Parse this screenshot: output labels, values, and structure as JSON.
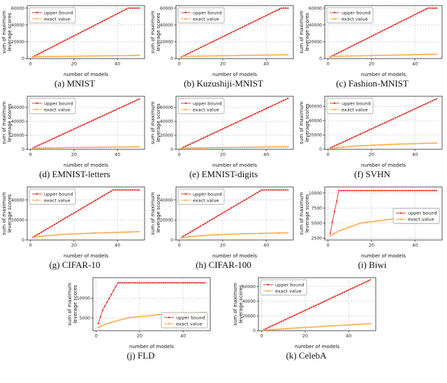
{
  "figure": {
    "background": "#ffffff"
  },
  "axes": {
    "xlabel": "number of models",
    "ylabel_line1": "sum of maximum",
    "ylabel_line2": "leverage scores"
  },
  "legend": {
    "upper": "upper bound",
    "exact": "exact value"
  },
  "colors": {
    "upper": "#e8291f",
    "exact": "#ffa33b",
    "grid": "#c6c6c6",
    "axis": "#2b2b2b"
  },
  "chart_data": [
    {
      "id": "mnist",
      "caption": "(a) MNIST",
      "type": "line",
      "xlim": [
        -1.5,
        52.5
      ],
      "ylim": [
        0,
        63000
      ],
      "xticks": [
        0,
        20,
        40
      ],
      "yticks": [
        0,
        20000,
        40000,
        60000
      ],
      "legend_pos": "upper-left",
      "series": [
        {
          "name": "upper bound",
          "color_key": "upper",
          "points": [
            [
              1,
              2000
            ],
            [
              45,
              60000
            ],
            [
              50,
              60000
            ]
          ]
        },
        {
          "name": "exact value",
          "color_key": "exact",
          "points": [
            [
              1,
              2200
            ],
            [
              50,
              3800
            ]
          ]
        }
      ]
    },
    {
      "id": "kuzushiji-mnist",
      "caption": "(b) Kuzushiji-MNIST",
      "type": "line",
      "xlim": [
        -1.5,
        52.5
      ],
      "ylim": [
        0,
        63000
      ],
      "xticks": [
        0,
        20,
        40
      ],
      "yticks": [
        0,
        20000,
        40000,
        60000
      ],
      "legend_pos": "upper-left",
      "series": [
        {
          "name": "upper bound",
          "color_key": "upper",
          "points": [
            [
              1,
              2000
            ],
            [
              47,
              60000
            ],
            [
              50,
              60000
            ]
          ]
        },
        {
          "name": "exact value",
          "color_key": "exact",
          "points": [
            [
              1,
              2600
            ],
            [
              50,
              4600
            ]
          ]
        }
      ]
    },
    {
      "id": "fashion-mnist",
      "caption": "(c) Fashion-MNIST",
      "type": "line",
      "xlim": [
        -1.5,
        52.5
      ],
      "ylim": [
        0,
        63000
      ],
      "xticks": [
        0,
        20,
        40
      ],
      "yticks": [
        0,
        20000,
        40000,
        60000
      ],
      "legend_pos": "upper-left",
      "series": [
        {
          "name": "upper bound",
          "color_key": "upper",
          "points": [
            [
              1,
              2000
            ],
            [
              46,
              60000
            ],
            [
              50,
              60000
            ]
          ]
        },
        {
          "name": "exact value",
          "color_key": "exact",
          "points": [
            [
              1,
              2600
            ],
            [
              50,
              5200
            ]
          ]
        }
      ]
    },
    {
      "id": "emnist-letters",
      "caption": "(d) EMNIST-letters",
      "type": "line",
      "xlim": [
        -1.5,
        52.5
      ],
      "ylim": [
        0,
        76000
      ],
      "xticks": [
        0,
        20,
        40
      ],
      "yticks": [
        0,
        20000,
        40000,
        60000
      ],
      "legend_pos": "upper-left",
      "series": [
        {
          "name": "upper bound",
          "color_key": "upper",
          "points": [
            [
              1,
              1800
            ],
            [
              50,
              72000
            ]
          ]
        },
        {
          "name": "exact value",
          "color_key": "exact",
          "points": [
            [
              1,
              1800
            ],
            [
              50,
              3600
            ]
          ]
        }
      ]
    },
    {
      "id": "emnist-digits",
      "caption": "(e) EMNIST-digits",
      "type": "line",
      "xlim": [
        -1.5,
        52.5
      ],
      "ylim": [
        0,
        76000
      ],
      "xticks": [
        0,
        20,
        40
      ],
      "yticks": [
        0,
        20000,
        40000,
        60000
      ],
      "legend_pos": "upper-left",
      "series": [
        {
          "name": "upper bound",
          "color_key": "upper",
          "points": [
            [
              1,
              1500
            ],
            [
              50,
              73000
            ]
          ]
        },
        {
          "name": "exact value",
          "color_key": "exact",
          "points": [
            [
              1,
              1800
            ],
            [
              50,
              3600
            ]
          ]
        }
      ]
    },
    {
      "id": "svhn",
      "caption": "(f) SVHN",
      "type": "line",
      "xlim": [
        -1.5,
        52.5
      ],
      "ylim": [
        0,
        74000
      ],
      "xticks": [
        0,
        20,
        40
      ],
      "yticks": [
        0,
        20000,
        40000,
        60000
      ],
      "legend_pos": "upper-left",
      "series": [
        {
          "name": "upper bound",
          "color_key": "upper",
          "points": [
            [
              1,
              1800
            ],
            [
              50,
              70500
            ]
          ]
        },
        {
          "name": "exact value",
          "color_key": "exact",
          "points": [
            [
              1,
              1200
            ],
            [
              5,
              2500
            ],
            [
              15,
              5000
            ],
            [
              30,
              7000
            ],
            [
              50,
              8800
            ]
          ]
        }
      ]
    },
    {
      "id": "cifar-10",
      "caption": "(g) CIFAR-10",
      "type": "line",
      "xlim": [
        -1.5,
        52.5
      ],
      "ylim": [
        0,
        53000
      ],
      "xticks": [
        0,
        20,
        40
      ],
      "yticks": [
        0,
        20000,
        40000
      ],
      "legend_pos": "upper-left",
      "series": [
        {
          "name": "upper bound",
          "color_key": "upper",
          "points": [
            [
              1,
              2600
            ],
            [
              38,
              50000
            ],
            [
              50,
              50000
            ]
          ]
        },
        {
          "name": "exact value",
          "color_key": "exact",
          "points": [
            [
              1,
              2400
            ],
            [
              5,
              3800
            ],
            [
              15,
              5600
            ],
            [
              30,
              7000
            ],
            [
              50,
              8300
            ]
          ]
        }
      ]
    },
    {
      "id": "cifar-100",
      "caption": "(h) CIFAR-100",
      "type": "line",
      "xlim": [
        -1.5,
        52.5
      ],
      "ylim": [
        0,
        53000
      ],
      "xticks": [
        0,
        20,
        40
      ],
      "yticks": [
        0,
        20000,
        40000
      ],
      "legend_pos": "upper-left",
      "series": [
        {
          "name": "upper bound",
          "color_key": "upper",
          "points": [
            [
              1,
              2600
            ],
            [
              38,
              50000
            ],
            [
              50,
              50000
            ]
          ]
        },
        {
          "name": "exact value",
          "color_key": "exact",
          "points": [
            [
              1,
              2200
            ],
            [
              5,
              3400
            ],
            [
              15,
              5000
            ],
            [
              30,
              6200
            ],
            [
              50,
              7200
            ]
          ]
        }
      ]
    },
    {
      "id": "biwi",
      "caption": "(i) Biwi",
      "type": "line",
      "xlim": [
        -1.5,
        52.5
      ],
      "ylim": [
        2200,
        11000
      ],
      "xticks": [
        0,
        20,
        40
      ],
      "yticks": [
        2500,
        5000,
        7500,
        10000
      ],
      "legend_pos": "center-right",
      "series": [
        {
          "name": "upper bound",
          "color_key": "upper",
          "points": [
            [
              1,
              3300
            ],
            [
              2,
              5200
            ],
            [
              5,
              10400
            ],
            [
              50,
              10400
            ]
          ]
        },
        {
          "name": "exact value",
          "color_key": "exact",
          "points": [
            [
              1,
              2900
            ],
            [
              5,
              3700
            ],
            [
              15,
              5000
            ],
            [
              30,
              5700
            ],
            [
              50,
              6100
            ]
          ]
        }
      ]
    },
    {
      "id": "fld",
      "caption": "(j) FLD",
      "type": "line",
      "xlim": [
        -1.5,
        52.5
      ],
      "ylim": [
        1800,
        15200
      ],
      "xticks": [
        0,
        20,
        40
      ],
      "yticks": [
        5000,
        10000
      ],
      "legend_pos": "lower-right",
      "series": [
        {
          "name": "upper bound",
          "color_key": "upper",
          "points": [
            [
              1,
              3600
            ],
            [
              3,
              7000
            ],
            [
              10,
              13900
            ],
            [
              50,
              13900
            ]
          ]
        },
        {
          "name": "exact value",
          "color_key": "exact",
          "points": [
            [
              1,
              2600
            ],
            [
              5,
              3600
            ],
            [
              15,
              5100
            ],
            [
              30,
              5900
            ],
            [
              50,
              6400
            ]
          ]
        }
      ]
    },
    {
      "id": "celeba",
      "caption": "(k) CelebA",
      "type": "line",
      "xlim": [
        -1.5,
        52.5
      ],
      "ylim": [
        0,
        72000
      ],
      "xticks": [
        0,
        20,
        40
      ],
      "yticks": [
        0,
        20000,
        40000,
        60000
      ],
      "legend_pos": "upper-left",
      "series": [
        {
          "name": "upper bound",
          "color_key": "upper",
          "points": [
            [
              1,
              1400
            ],
            [
              50,
              69000
            ]
          ]
        },
        {
          "name": "exact value",
          "color_key": "exact",
          "points": [
            [
              1,
              600
            ],
            [
              15,
              3500
            ],
            [
              35,
              7000
            ],
            [
              50,
              9500
            ]
          ]
        }
      ]
    }
  ]
}
